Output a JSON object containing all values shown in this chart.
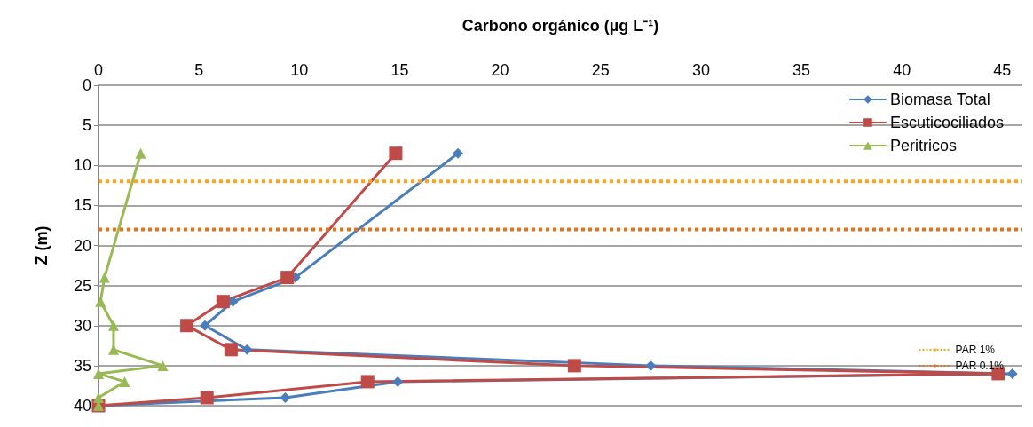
{
  "chart_data": {
    "type": "line",
    "xlabel": "Carbono orgánico (µg L⁻¹)",
    "ylabel": "Z (m)",
    "xlim": [
      0,
      46
    ],
    "xticks": [
      0,
      5,
      10,
      15,
      20,
      25,
      30,
      35,
      40,
      45
    ],
    "ylim": [
      40,
      0
    ],
    "yticks": [
      0,
      5,
      10,
      15,
      20,
      25,
      30,
      35,
      40
    ],
    "grid": "y",
    "legend": "top right",
    "line_style": "solid",
    "series": [
      {
        "name": "Biomasa Total",
        "color": "#4a7ebb",
        "marker": "diamond",
        "x": [
          17.9,
          9.8,
          6.7,
          5.3,
          7.4,
          27.5,
          45.5,
          14.9,
          9.3,
          0
        ],
        "values": [
          8.5,
          24,
          27,
          30,
          33,
          35,
          36,
          37,
          39,
          40
        ]
      },
      {
        "name": "Escuticociliados",
        "color": "#be4b48",
        "marker": "square",
        "x": [
          14.8,
          9.4,
          6.2,
          4.4,
          6.6,
          23.7,
          44.8,
          13.4,
          5.4,
          0
        ],
        "values": [
          8.5,
          24,
          27,
          30,
          33,
          35,
          36,
          37,
          39,
          40
        ]
      },
      {
        "name": "Peritricos",
        "color": "#98b954",
        "marker": "triangle",
        "x": [
          2.1,
          0.3,
          0.1,
          0.75,
          0.75,
          3.2,
          0,
          1.3,
          0,
          0
        ],
        "values": [
          8.5,
          24,
          27,
          30,
          33,
          35,
          36,
          37,
          39,
          40
        ]
      }
    ],
    "ref_lines": [
      {
        "axis": "y",
        "value": 12,
        "label": "PAR 1%",
        "color": "#ffa31a",
        "line_style": "dotted"
      },
      {
        "axis": "y",
        "value": 18,
        "label": "PAR 0.1%",
        "color": "#ec7014",
        "line_style": "dotted"
      }
    ]
  }
}
